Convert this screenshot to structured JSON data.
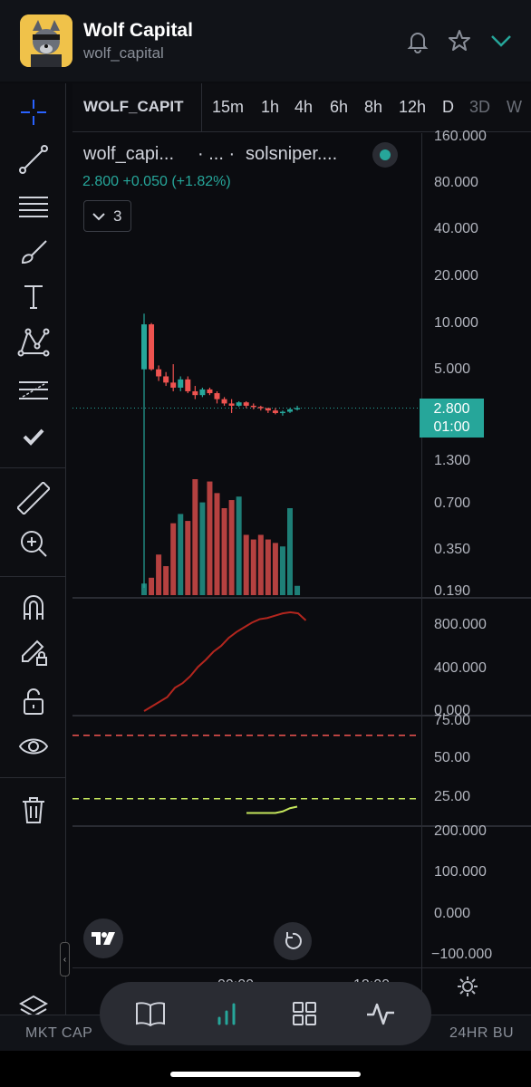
{
  "header": {
    "title": "Wolf Capital",
    "handle": "wolf_capital",
    "icons": [
      "bell-icon",
      "star-icon",
      "chevron-down-icon"
    ],
    "accent": "#26a69a"
  },
  "toolbar": {
    "symbol": "WOLF_CAPIT",
    "timeframes": [
      "15m",
      "1h",
      "4h",
      "6h",
      "8h",
      "12h",
      "D",
      "3D",
      "W"
    ]
  },
  "left_tools": [
    "crosshair-icon",
    "trend-line-icon",
    "fib-lines-icon",
    "brush-icon",
    "text-icon",
    "pattern-icon",
    "forecast-icon",
    "checkmark-icon",
    "ruler-icon",
    "zoom-in-icon",
    "magnet-icon",
    "lock-drawing-icon",
    "unlock-icon",
    "eye-icon",
    "trash-icon",
    "layers-icon"
  ],
  "legend": {
    "name": "wolf_capi...",
    "interval": "·  ...  ·",
    "source": "solsniper....",
    "ohlc": "2.800  +0.050 (+1.82%)",
    "indicator_count": "3"
  },
  "price_badge": {
    "price": "2.800",
    "countdown": "01:00"
  },
  "axes": {
    "price": [
      "160.000",
      "80.000",
      "40.000",
      "20.000",
      "10.000",
      "5.000",
      "1.300",
      "0.700",
      "0.350",
      "0.190"
    ],
    "pane2": [
      "800.000",
      "400.000",
      "0.000"
    ],
    "pane3": [
      "75.00",
      "50.00",
      "25.00"
    ],
    "pane4": [
      "200.000",
      "100.000",
      "0.000",
      "−100.000"
    ],
    "time": [
      "00:00",
      "12:00"
    ]
  },
  "chart_data": {
    "type": "candlestick",
    "scale": "log",
    "ylim": [
      0.19,
      160
    ],
    "last_price": 2.8,
    "candles": [
      {
        "o": 5.0,
        "h": 11.5,
        "l": 0.19,
        "c": 9.8
      },
      {
        "o": 9.8,
        "h": 10.0,
        "l": 4.9,
        "c": 5.0
      },
      {
        "o": 5.0,
        "h": 5.3,
        "l": 4.2,
        "c": 4.5
      },
      {
        "o": 4.5,
        "h": 4.8,
        "l": 3.9,
        "c": 4.1
      },
      {
        "o": 4.1,
        "h": 5.4,
        "l": 3.6,
        "c": 3.8
      },
      {
        "o": 3.8,
        "h": 4.5,
        "l": 3.6,
        "c": 4.3
      },
      {
        "o": 4.3,
        "h": 4.5,
        "l": 3.5,
        "c": 3.6
      },
      {
        "o": 3.6,
        "h": 3.9,
        "l": 3.2,
        "c": 3.4
      },
      {
        "o": 3.4,
        "h": 3.8,
        "l": 3.3,
        "c": 3.7
      },
      {
        "o": 3.7,
        "h": 3.8,
        "l": 3.4,
        "c": 3.5
      },
      {
        "o": 3.5,
        "h": 3.6,
        "l": 3.0,
        "c": 3.2
      },
      {
        "o": 3.2,
        "h": 3.3,
        "l": 2.9,
        "c": 3.0
      },
      {
        "o": 3.0,
        "h": 3.2,
        "l": 2.6,
        "c": 2.9
      },
      {
        "o": 2.9,
        "h": 3.1,
        "l": 2.85,
        "c": 3.05
      },
      {
        "o": 3.05,
        "h": 3.1,
        "l": 2.8,
        "c": 2.9
      },
      {
        "o": 2.9,
        "h": 3.0,
        "l": 2.75,
        "c": 2.85
      },
      {
        "o": 2.85,
        "h": 2.9,
        "l": 2.7,
        "c": 2.8
      },
      {
        "o": 2.8,
        "h": 2.8,
        "l": 2.6,
        "c": 2.7
      },
      {
        "o": 2.7,
        "h": 2.8,
        "l": 2.55,
        "c": 2.6
      },
      {
        "o": 2.6,
        "h": 2.7,
        "l": 2.5,
        "c": 2.65
      },
      {
        "o": 2.65,
        "h": 2.8,
        "l": 2.6,
        "c": 2.75
      },
      {
        "o": 2.75,
        "h": 2.9,
        "l": 2.7,
        "c": 2.8
      }
    ],
    "volume_relative": [
      0.1,
      0.15,
      0.35,
      0.25,
      0.62,
      0.7,
      0.64,
      1.0,
      0.8,
      0.98,
      0.88,
      0.75,
      0.82,
      0.85,
      0.52,
      0.48,
      0.52,
      0.48,
      0.45,
      0.42,
      0.75,
      0.08
    ],
    "pane2_series": [
      0,
      40,
      80,
      120,
      200,
      240,
      300,
      380,
      440,
      510,
      560,
      630,
      680,
      720,
      760,
      790,
      800,
      820,
      840,
      850,
      840,
      780
    ],
    "pane3_levels": {
      "upper": 70,
      "lower": 30
    },
    "pane3_series": [
      21,
      21,
      21,
      21,
      21,
      22,
      24,
      25
    ],
    "colors": {
      "up": "#26a69a",
      "down": "#ef5350",
      "pane2": "#b3261e",
      "pane3": "#c5e65c",
      "upper_level": "#ef5350",
      "lower_level": "#c5e65c"
    }
  },
  "bottom_nav": [
    "book-icon",
    "bar-chart-icon",
    "grid-icon",
    "activity-icon"
  ],
  "ticker": {
    "left": "MKT CAP",
    "right": "24HR BU"
  }
}
